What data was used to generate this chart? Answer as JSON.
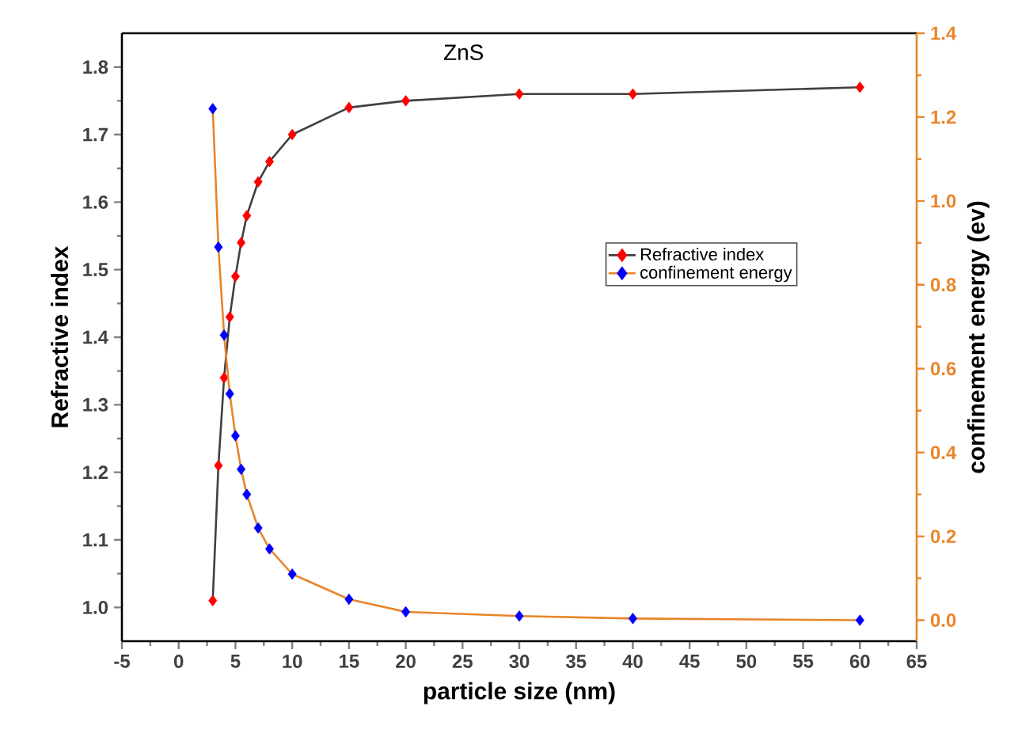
{
  "chart_data": {
    "type": "line",
    "title": "ZnS",
    "xlabel": "particle size (nm)",
    "ylabel": "Refractive index",
    "y2label": "confinement energy (ev)",
    "x": [
      3,
      3.5,
      4,
      4.5,
      5,
      5.5,
      6,
      7,
      8,
      10,
      15,
      20,
      30,
      40,
      60
    ],
    "series": [
      {
        "name": "Refractive index",
        "color": "#404040",
        "colors": [
          "#ff0000",
          "#ff0000",
          "#ff0000",
          "#ff0000",
          "#ff0000",
          "#ff0000",
          "#ff0000",
          "#ff0000",
          "#ff0000",
          "#ff0000",
          "#ff0000",
          "#ff0000",
          "#ff0000",
          "#ff0000",
          "#ff0000"
        ],
        "values": [
          1.01,
          1.21,
          1.34,
          1.43,
          1.49,
          1.54,
          1.58,
          1.63,
          1.66,
          1.7,
          1.74,
          1.75,
          1.76,
          1.76,
          1.77
        ]
      },
      {
        "name": "confinement energy",
        "color": "#e8852a",
        "colors": [
          "#0000ff",
          "#0000ff",
          "#0000ff",
          "#0000ff",
          "#0000ff",
          "#0000ff",
          "#0000ff",
          "#0000ff",
          "#0000ff",
          "#0000ff",
          "#0000ff",
          "#0000ff",
          "#0000ff",
          "#0000ff",
          "#0000ff"
        ],
        "axis": "y2",
        "values": [
          1.22,
          0.89,
          0.68,
          0.54,
          0.44,
          0.36,
          0.3,
          0.22,
          0.17,
          0.11,
          0.05,
          0.02,
          0.01,
          0.004,
          0.0
        ]
      }
    ],
    "xlim": [
      -5,
      65
    ],
    "xticks": [
      -5,
      0,
      5,
      10,
      15,
      20,
      25,
      30,
      35,
      40,
      45,
      50,
      55,
      60,
      65
    ],
    "ylim": [
      0.95,
      1.85
    ],
    "yticks": [
      {
        "value": 1.0,
        "label": "1.0"
      },
      {
        "value": 1.1,
        "label": "1.1"
      },
      {
        "value": 1.2,
        "label": "1.2"
      },
      {
        "value": 1.3,
        "label": "1.3"
      },
      {
        "value": 1.4,
        "label": "1.4"
      },
      {
        "value": 1.5,
        "label": "1.5"
      },
      {
        "value": 1.6,
        "label": "1.6"
      },
      {
        "value": 1.7,
        "label": "1.7"
      },
      {
        "value": 1.8,
        "label": "1.8"
      }
    ],
    "y2lim": [
      -0.05,
      1.4
    ],
    "y2ticks": [
      {
        "value": 0.0,
        "label": "0.0"
      },
      {
        "value": 0.2,
        "label": "0.2"
      },
      {
        "value": 0.4,
        "label": "0.4"
      },
      {
        "value": 0.6,
        "label": "0.6"
      },
      {
        "value": 0.8,
        "label": "0.8"
      },
      {
        "value": 1.0,
        "label": "1.0"
      },
      {
        "value": 1.2,
        "label": "1.2"
      },
      {
        "value": 1.4,
        "label": "1.4"
      }
    ],
    "legend": "right",
    "marker": "diamond",
    "line_style": "solid",
    "grid": false
  }
}
